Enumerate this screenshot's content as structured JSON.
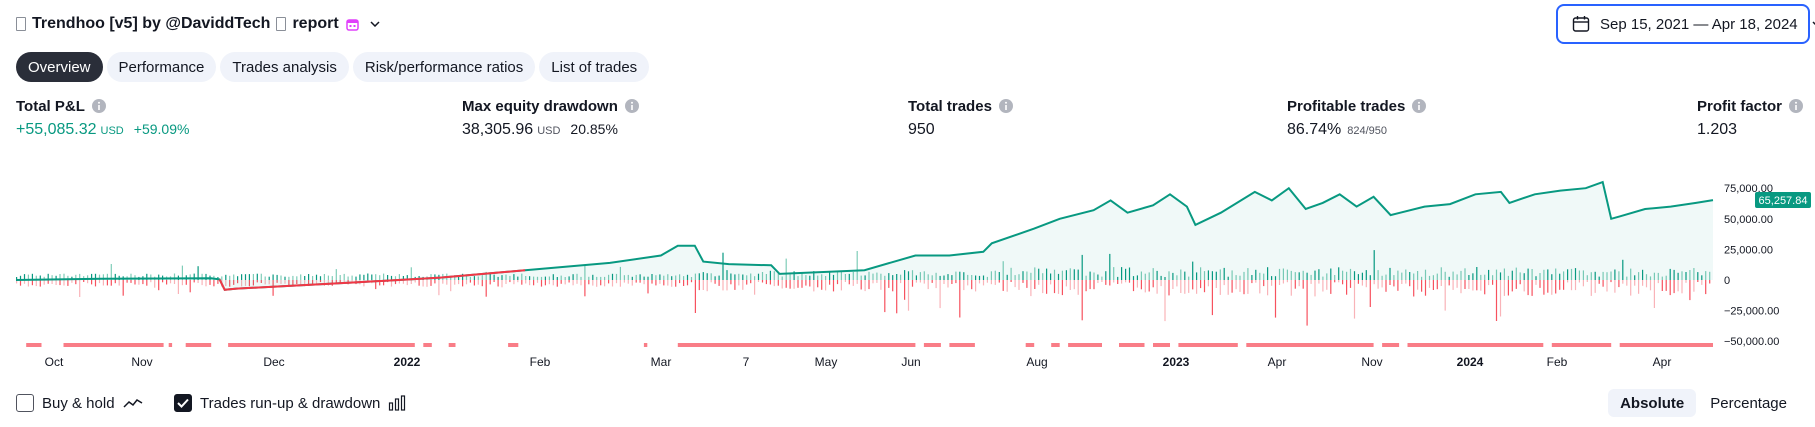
{
  "header": {
    "title": "Trendhoo [v5] by @DaviddTech",
    "title_suffix": "report",
    "icons": [
      "document-icon",
      "calendar-badge-icon",
      "chevron-down-icon"
    ]
  },
  "date_range": {
    "label": "Sep 15, 2021 — Apr 18, 2024",
    "icon": "calendar-icon"
  },
  "tabs": [
    {
      "label": "Overview",
      "active": true
    },
    {
      "label": "Performance",
      "active": false
    },
    {
      "label": "Trades analysis",
      "active": false
    },
    {
      "label": "Risk/performance ratios",
      "active": false
    },
    {
      "label": "List of trades",
      "active": false
    }
  ],
  "metrics": {
    "total_pnl": {
      "label": "Total P&L",
      "value": "+55,085.32",
      "unit": "USD",
      "sub": "+59.09%"
    },
    "max_drawdown": {
      "label": "Max equity drawdown",
      "value": "38,305.96",
      "unit": "USD",
      "sub": "20.85%"
    },
    "total_trades": {
      "label": "Total trades",
      "value": "950"
    },
    "profitable_trades": {
      "label": "Profitable trades",
      "value": "86.74%",
      "ratio": "824/950"
    },
    "profit_factor": {
      "label": "Profit factor",
      "value": "1.203"
    }
  },
  "colors": {
    "equity": "#089981",
    "equity_drawdown": "#f23645",
    "runup": "#089981",
    "drawdown_bar": "#f7525f",
    "positive": "#089981",
    "accent": "#2962ff"
  },
  "chart_data": {
    "type": "area",
    "y_ticks": [
      "75,000.00",
      "50,000.00",
      "25,000.00",
      "0",
      "−25,000.00",
      "−50,000.00"
    ],
    "ylim": [
      -50000,
      75000
    ],
    "last_value_label": "65,257.84",
    "x_labels": [
      {
        "label": "Oct",
        "bold": false
      },
      {
        "label": "Nov",
        "bold": false
      },
      {
        "label": "Dec",
        "bold": false
      },
      {
        "label": "2022",
        "bold": true
      },
      {
        "label": "Feb",
        "bold": false
      },
      {
        "label": "Mar",
        "bold": false
      },
      {
        "label": "7",
        "bold": false
      },
      {
        "label": "May",
        "bold": false
      },
      {
        "label": "Jun",
        "bold": false
      },
      {
        "label": "Aug",
        "bold": false
      },
      {
        "label": "2023",
        "bold": true
      },
      {
        "label": "Apr",
        "bold": false
      },
      {
        "label": "Nov",
        "bold": false
      },
      {
        "label": "2024",
        "bold": true
      },
      {
        "label": "Feb",
        "bold": false
      },
      {
        "label": "Apr",
        "bold": false
      }
    ],
    "equity_series": {
      "name": "Equity",
      "points": [
        [
          0,
          0
        ],
        [
          0.05,
          1000
        ],
        [
          0.115,
          1500
        ],
        [
          0.12,
          500
        ],
        [
          0.123,
          -8000
        ],
        [
          0.13,
          -7000
        ],
        [
          0.2,
          -2000
        ],
        [
          0.25,
          2000
        ],
        [
          0.3,
          8000
        ],
        [
          0.35,
          14000
        ],
        [
          0.38,
          20000
        ],
        [
          0.39,
          28000
        ],
        [
          0.4,
          28000
        ],
        [
          0.405,
          15000
        ],
        [
          0.42,
          13000
        ],
        [
          0.445,
          12000
        ],
        [
          0.45,
          5000
        ],
        [
          0.5,
          8000
        ],
        [
          0.53,
          20000
        ],
        [
          0.55,
          20000
        ],
        [
          0.57,
          23000
        ],
        [
          0.575,
          30000
        ],
        [
          0.6,
          42000
        ],
        [
          0.615,
          50000
        ],
        [
          0.635,
          57000
        ],
        [
          0.645,
          65000
        ],
        [
          0.655,
          55000
        ],
        [
          0.67,
          61000
        ],
        [
          0.68,
          70000
        ],
        [
          0.69,
          60000
        ],
        [
          0.695,
          45000
        ],
        [
          0.71,
          55000
        ],
        [
          0.73,
          72000
        ],
        [
          0.74,
          65000
        ],
        [
          0.75,
          75000
        ],
        [
          0.76,
          58000
        ],
        [
          0.77,
          63000
        ],
        [
          0.78,
          70000
        ],
        [
          0.79,
          60000
        ],
        [
          0.8,
          68000
        ],
        [
          0.81,
          53000
        ],
        [
          0.83,
          60000
        ],
        [
          0.845,
          62000
        ],
        [
          0.86,
          70000
        ],
        [
          0.875,
          72000
        ],
        [
          0.88,
          63000
        ],
        [
          0.895,
          70000
        ],
        [
          0.91,
          73000
        ],
        [
          0.925,
          75000
        ],
        [
          0.935,
          80000
        ],
        [
          0.94,
          50000
        ],
        [
          0.945,
          52000
        ],
        [
          0.96,
          58000
        ],
        [
          0.975,
          60000
        ],
        [
          0.99,
          63000
        ],
        [
          1.0,
          65257.84
        ]
      ]
    },
    "runup_drawdown_series": {
      "name": "Trades run-up & drawdown",
      "bars": 950
    }
  },
  "footer": {
    "buy_hold_label": "Buy & hold",
    "buy_hold_checked": false,
    "trades_label": "Trades run-up & drawdown",
    "trades_checked": true,
    "modes": [
      {
        "label": "Absolute",
        "active": true
      },
      {
        "label": "Percentage",
        "active": false
      }
    ]
  }
}
